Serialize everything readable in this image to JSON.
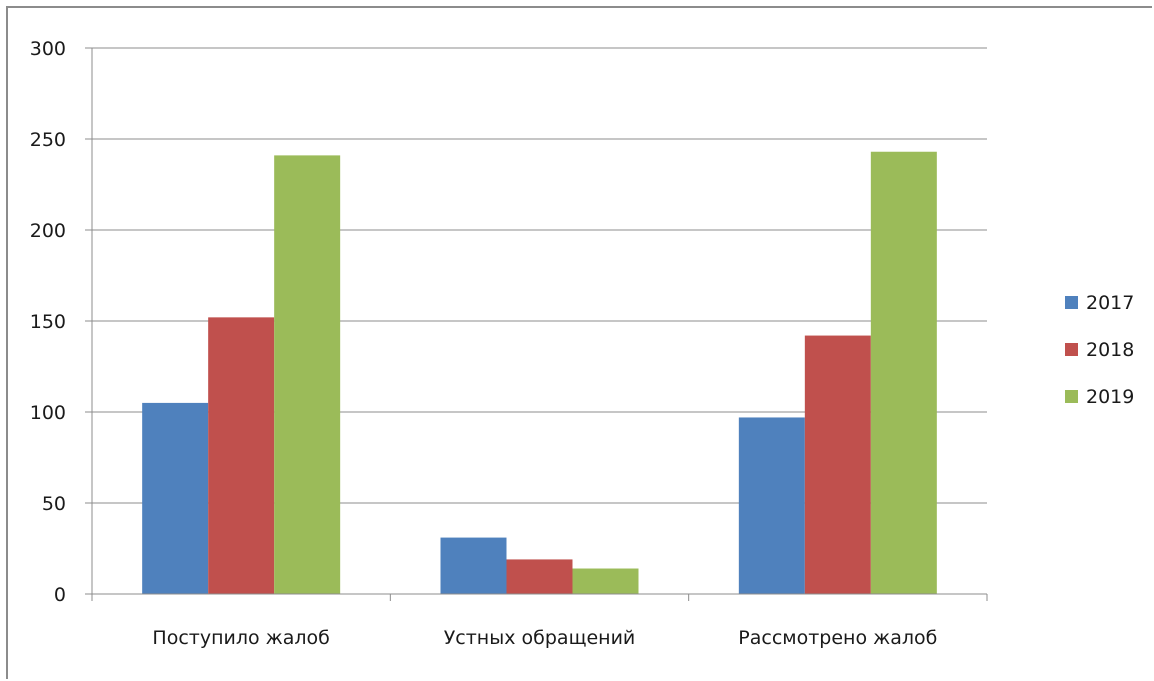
{
  "chart_data": {
    "type": "bar",
    "categories": [
      "Поступило жалоб",
      "Устных обращений",
      "Рассмотрено жалоб"
    ],
    "series": [
      {
        "name": "2017",
        "values": [
          105,
          31,
          97
        ],
        "color": "#4f81bd"
      },
      {
        "name": "2018",
        "values": [
          152,
          19,
          142
        ],
        "color": "#c0504d"
      },
      {
        "name": "2019",
        "values": [
          241,
          14,
          243
        ],
        "color": "#9bbb59"
      }
    ],
    "ylim": [
      0,
      300
    ],
    "yticks": [
      0,
      50,
      100,
      150,
      200,
      250,
      300
    ],
    "grid": true,
    "legend": "right"
  }
}
